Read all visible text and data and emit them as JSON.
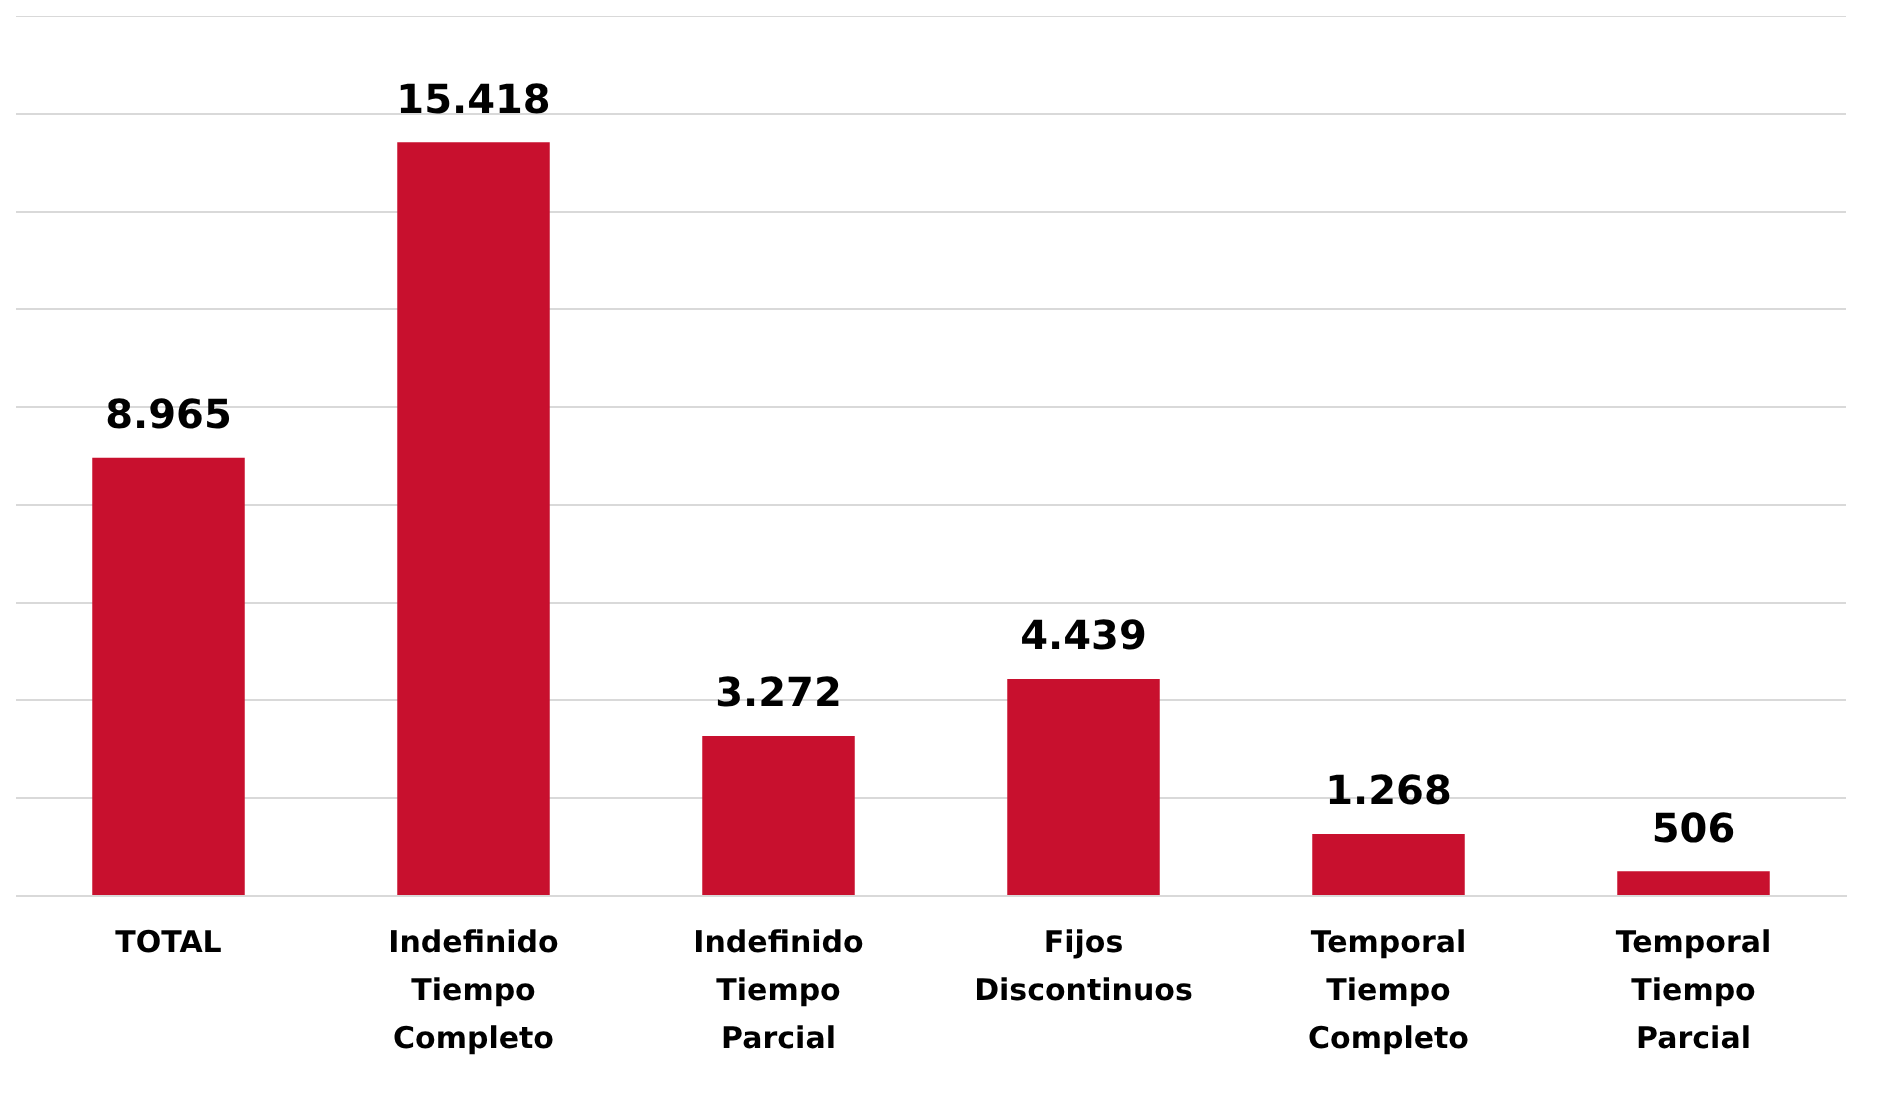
{
  "chart_data": {
    "type": "bar",
    "categories": [
      "TOTAL",
      "Indefinido Tiempo Completo",
      "Indefinido Tiempo Parcial",
      "Fijos Discontinuos",
      "Temporal Tiempo Completo",
      "Temporal Tiempo Parcial"
    ],
    "values": [
      8965,
      15418,
      3272,
      4439,
      1268,
      506
    ],
    "value_labels": [
      "8.965",
      "15.418",
      "3.272",
      "4.439",
      "1.268",
      "506"
    ],
    "color": "#c8102e",
    "ylim": [
      0,
      18000
    ],
    "yticks": [
      {
        "value": 0,
        "label": null
      },
      {
        "value": 2000,
        "label": null
      },
      {
        "value": 4000,
        "label": null
      },
      {
        "value": 6000,
        "label": null
      },
      {
        "value": 8000,
        "label": null
      },
      {
        "value": 10000,
        "label": null
      },
      {
        "value": 12000,
        "label": null
      },
      {
        "value": 14000,
        "label": null
      },
      {
        "value": 16000,
        "label": null
      },
      {
        "value": 18000,
        "label": null
      }
    ],
    "grid": "y",
    "tick_labels": "x",
    "legend": false
  }
}
